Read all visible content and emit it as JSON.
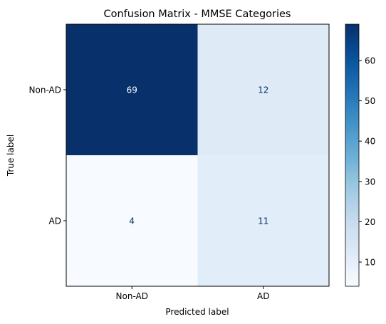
{
  "chart_data": {
    "type": "heatmap",
    "title": "Confusion Matrix - MMSE Categories",
    "xlabel": "Predicted label",
    "ylabel": "True label",
    "x_categories": [
      "Non-AD",
      "AD"
    ],
    "y_categories": [
      "Non-AD",
      "AD"
    ],
    "values": [
      [
        69,
        12
      ],
      [
        4,
        11
      ]
    ],
    "colormap": "Blues",
    "colorbar": {
      "ticks": [
        10,
        20,
        30,
        40,
        50,
        60
      ],
      "range": [
        4,
        69
      ]
    }
  }
}
